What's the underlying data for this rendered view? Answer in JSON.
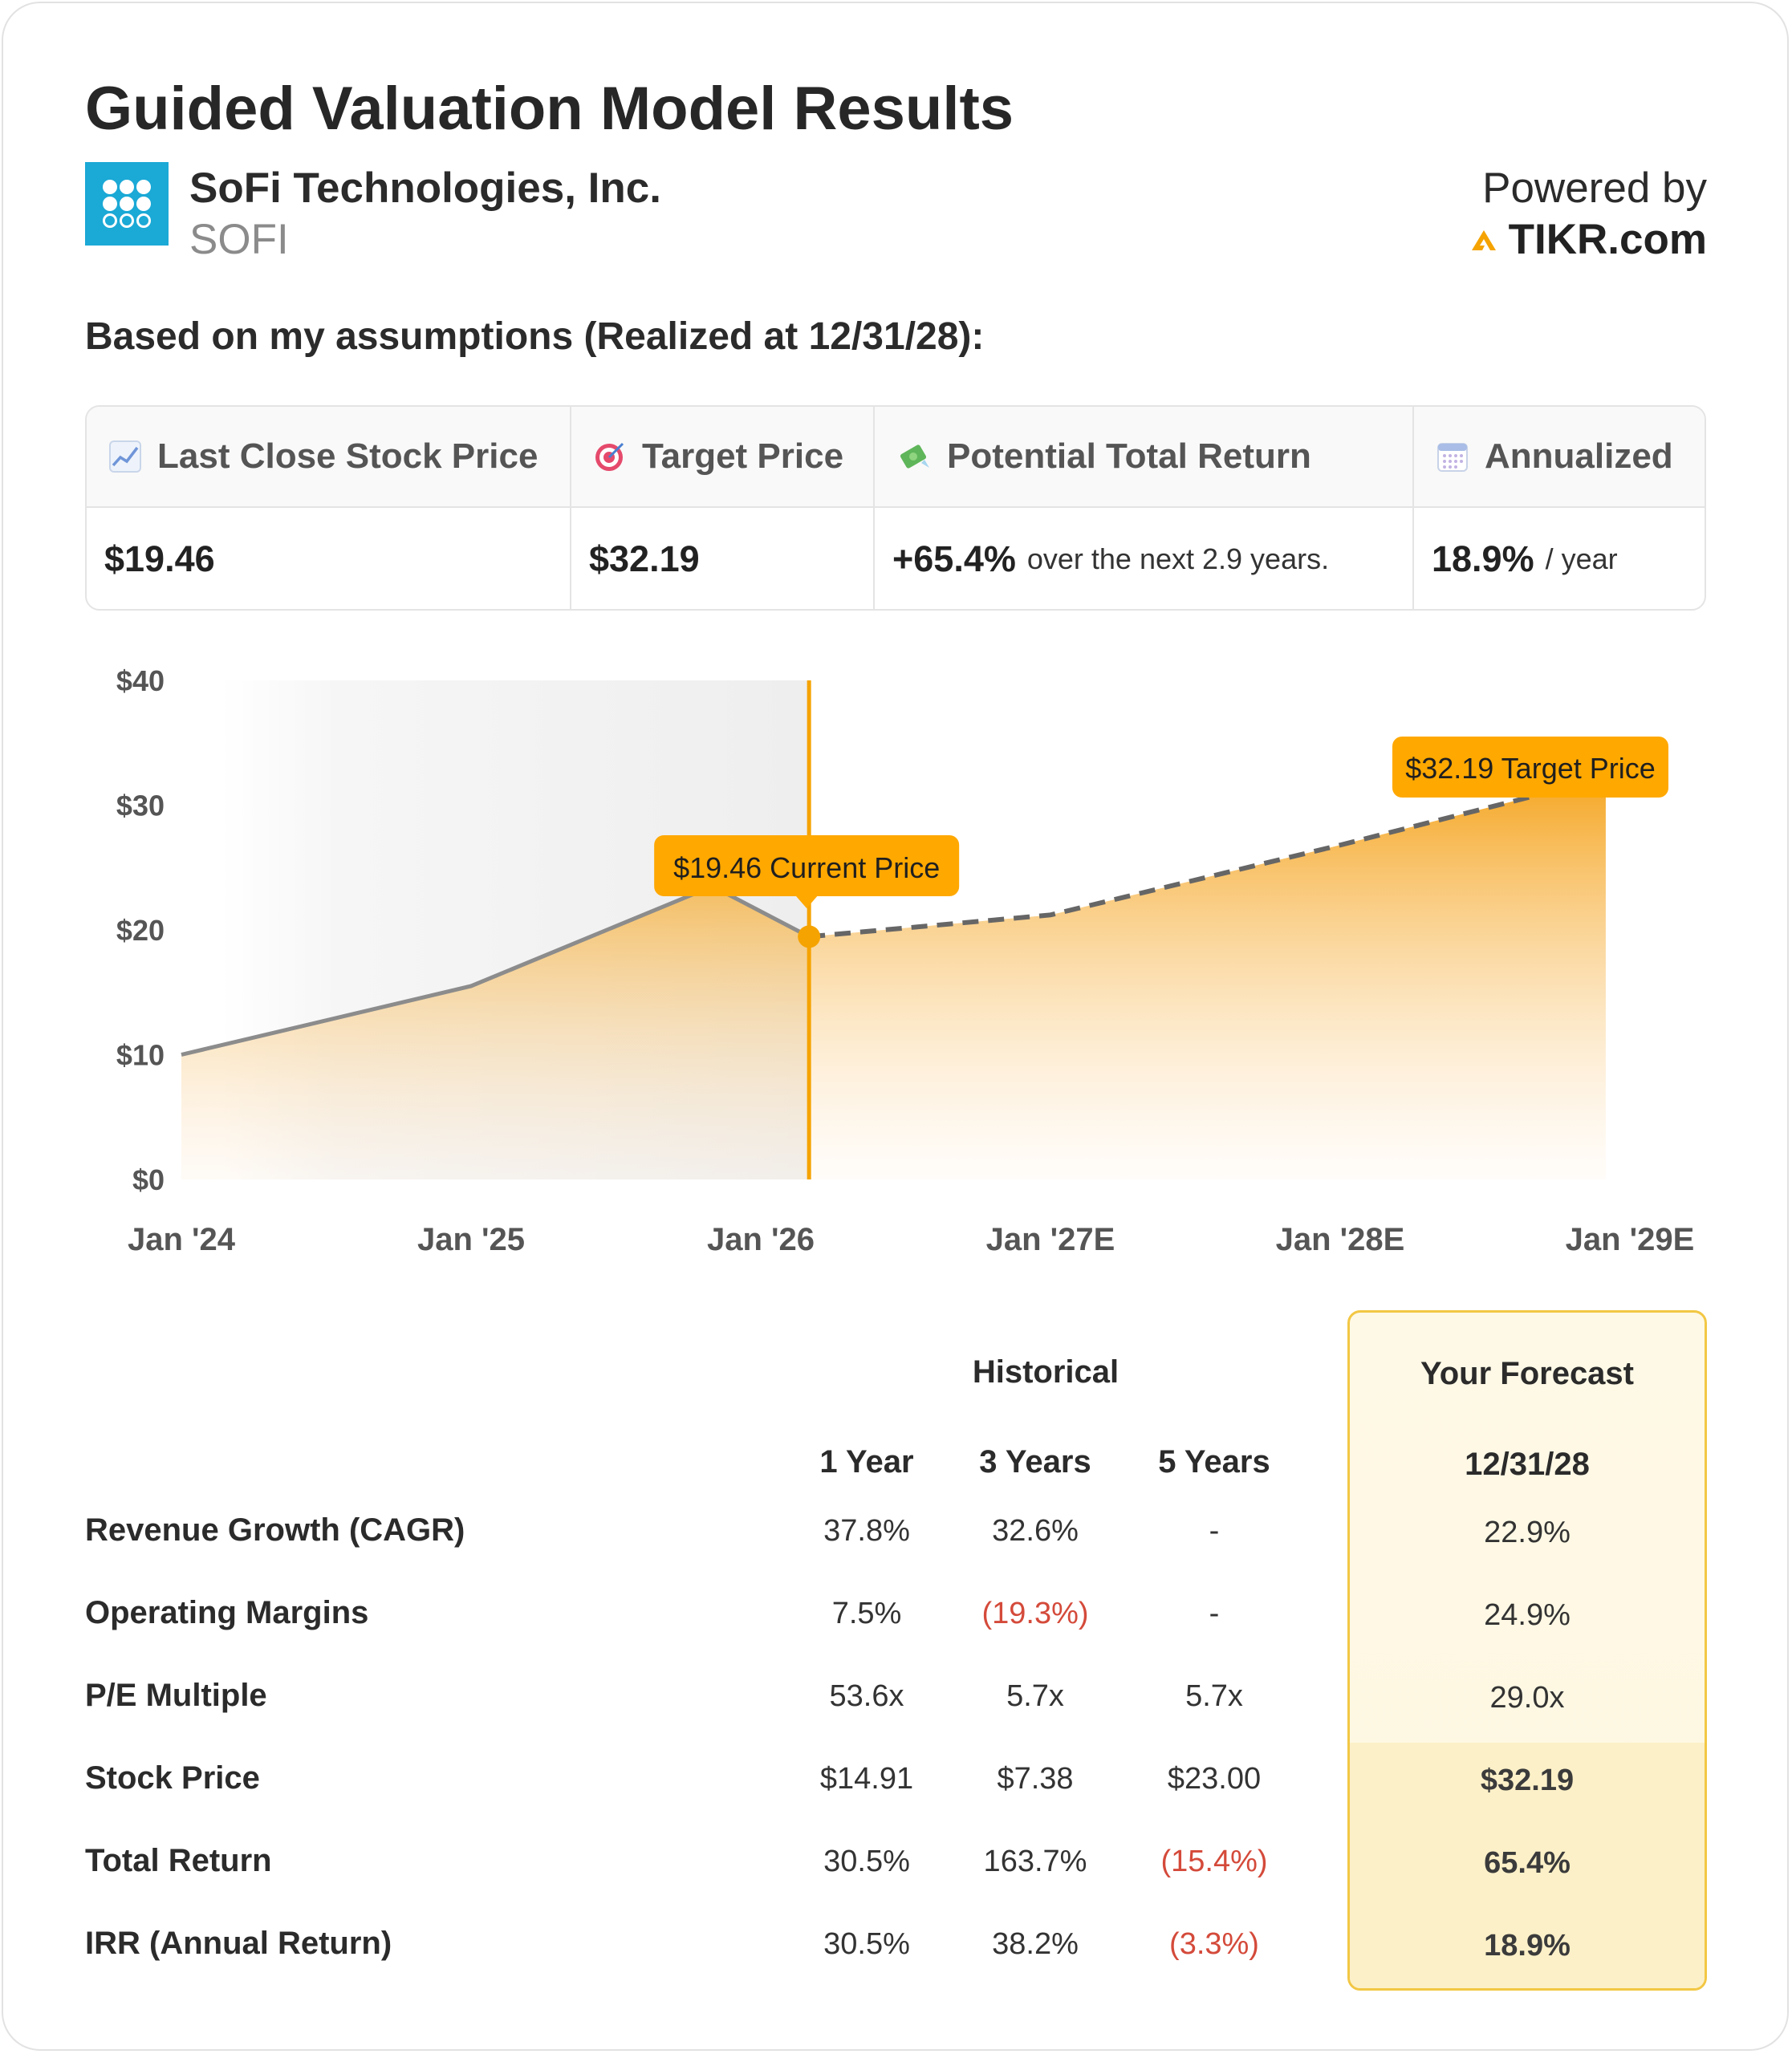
{
  "header": {
    "title": "Guided Valuation Model Results",
    "company_name": "SoFi Technologies, Inc.",
    "ticker": "SOFI",
    "powered_by": "Powered by",
    "brand": "TIKR.com"
  },
  "subheading": "Based on my assumptions (Realized at 12/31/28):",
  "metrics": [
    {
      "icon": "chart-increasing-icon",
      "label": "Last Close Stock Price",
      "value": "$19.46",
      "note": ""
    },
    {
      "icon": "target-icon",
      "label": "Target Price",
      "value": "$32.19",
      "note": ""
    },
    {
      "icon": "money-with-wings-icon",
      "label": "Potential Total Return",
      "value": "+65.4%",
      "note": "over the next 2.9 years."
    },
    {
      "icon": "calendar-icon",
      "label": "Annualized",
      "value": "18.9%",
      "note": "/ year"
    }
  ],
  "chart_data": {
    "type": "area",
    "y_ticks": [
      "$40",
      "$30",
      "$20",
      "$10",
      "$0"
    ],
    "ylim": [
      0,
      40
    ],
    "x_ticks": [
      "Jan '24",
      "Jan '25",
      "Jan '26",
      "Jan '27E",
      "Jan '28E",
      "Jan '29E"
    ],
    "historical": [
      {
        "x": "Jan '24",
        "y": 10.0
      },
      {
        "x": "Jan '25",
        "y": 15.5
      },
      {
        "x": "Nov '25",
        "y": 23.5
      },
      {
        "x": "Mar '26",
        "y": 19.46
      }
    ],
    "forecast": [
      {
        "x": "Mar '26",
        "y": 19.46
      },
      {
        "x": "Jan '27E",
        "y": 21.2
      },
      {
        "x": "Jan '28E",
        "y": 26.8
      },
      {
        "x": "Dec '28E",
        "y": 32.19
      }
    ],
    "annotations": {
      "current": "$19.46 Current Price",
      "target": "$32.19 Target Price"
    },
    "colors": {
      "accent": "#f5a300",
      "line": "#8c8c8c",
      "label_bg": "#ffa800"
    }
  },
  "table": {
    "group_header": "Historical",
    "forecast_header": "Your Forecast",
    "columns": [
      "1 Year",
      "3 Years",
      "5 Years"
    ],
    "forecast_column": "12/31/28",
    "rows": [
      {
        "label": "Revenue Growth (CAGR)",
        "values": [
          "37.8%",
          "32.6%",
          "-"
        ],
        "forecast": "22.9%"
      },
      {
        "label": "Operating Margins",
        "values": [
          "7.5%",
          "(19.3%)",
          "-"
        ],
        "forecast": "24.9%"
      },
      {
        "label": "P/E Multiple",
        "values": [
          "53.6x",
          "5.7x",
          "5.7x"
        ],
        "forecast": "29.0x"
      },
      {
        "label": "Stock Price",
        "values": [
          "$14.91",
          "$7.38",
          "$23.00"
        ],
        "forecast": "$32.19"
      },
      {
        "label": "Total Return",
        "values": [
          "30.5%",
          "163.7%",
          "(15.4%)"
        ],
        "forecast": "65.4%"
      },
      {
        "label": "IRR (Annual Return)",
        "values": [
          "30.5%",
          "38.2%",
          "(3.3%)"
        ],
        "forecast": "18.9%"
      }
    ]
  }
}
